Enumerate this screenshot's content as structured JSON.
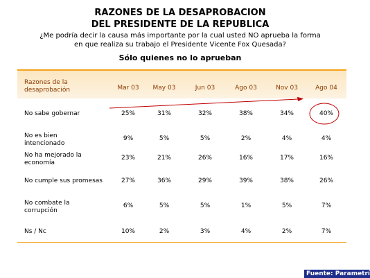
{
  "title_line1": "RAZONES DE LA DESAPROBACION",
  "title_line2": "DEL PRESIDENTE DE LA REPUBLICA",
  "question_line1": "¿Me podría decir la causa más importante por la cual usted NO aprueba la forma",
  "question_line2": "en que realiza su trabajo el Presidente Vicente Fox Quesada?",
  "subtitle": "Sólo quienes no lo aprueban",
  "source": "Fuente: Parametría",
  "colors": {
    "accent": "#f5a31a",
    "header_bg": "#fbe6c1",
    "header_text": "#8a3a00",
    "annotation": "#c00000",
    "source_bg": "#1f2d8a"
  },
  "chart_data": {
    "type": "table",
    "row_header": "Razones de la desaprobación",
    "categories": [
      "Mar 03",
      "May 03",
      "Jun 03",
      "Ago 03",
      "Nov 03",
      "Ago 04"
    ],
    "series": [
      {
        "name": "No sabe gobernar",
        "values": [
          25,
          31,
          32,
          38,
          34,
          40
        ],
        "display": [
          "25%",
          "31%",
          "32%",
          "38%",
          "34%",
          "40%"
        ]
      },
      {
        "name": "No es bien intencionado",
        "values": [
          9,
          5,
          5,
          2,
          4,
          4
        ],
        "display": [
          "9%",
          "5%",
          "5%",
          "2%",
          "4%",
          "4%"
        ]
      },
      {
        "name": "No ha mejorado la economía",
        "values": [
          23,
          21,
          26,
          16,
          17,
          16
        ],
        "display": [
          "23%",
          "21%",
          "26%",
          "16%",
          "17%",
          "16%"
        ]
      },
      {
        "name": "No cumple sus promesas",
        "values": [
          27,
          36,
          29,
          39,
          38,
          26
        ],
        "display": [
          "27%",
          "36%",
          "29%",
          "39%",
          "38%",
          "26%"
        ]
      },
      {
        "name": "No combate la corrupción",
        "values": [
          6,
          5,
          5,
          1,
          5,
          7
        ],
        "display": [
          "6%",
          "5%",
          "5%",
          "1%",
          "5%",
          "7%"
        ]
      },
      {
        "name": "Ns / Nc",
        "values": [
          10,
          2,
          3,
          4,
          2,
          7
        ],
        "display": [
          "10%",
          "2%",
          "3%",
          "4%",
          "2%",
          "7%"
        ]
      }
    ],
    "highlight": {
      "series": "No sabe gobernar",
      "category": "Ago 04"
    },
    "annotation": "trend arrow over first row"
  }
}
